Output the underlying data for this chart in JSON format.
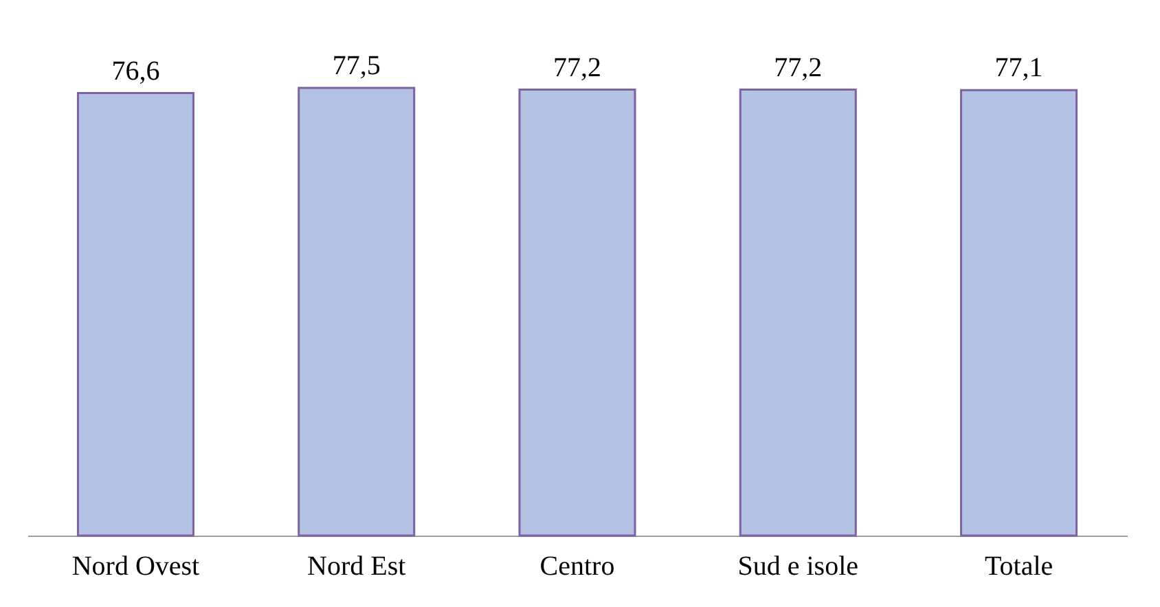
{
  "chart_data": {
    "type": "bar",
    "categories": [
      "Nord Ovest",
      "Nord Est",
      "Centro",
      "Sud e isole",
      "Totale"
    ],
    "series": [
      {
        "color": "#b3c2e4",
        "values": [
          76.6,
          77.5,
          77.2,
          77.2,
          77.1
        ],
        "value_labels": [
          "76,6",
          "77,5",
          "77,2",
          "77,2",
          "77,1"
        ]
      }
    ],
    "tick_labels": "x",
    "grid": false
  }
}
